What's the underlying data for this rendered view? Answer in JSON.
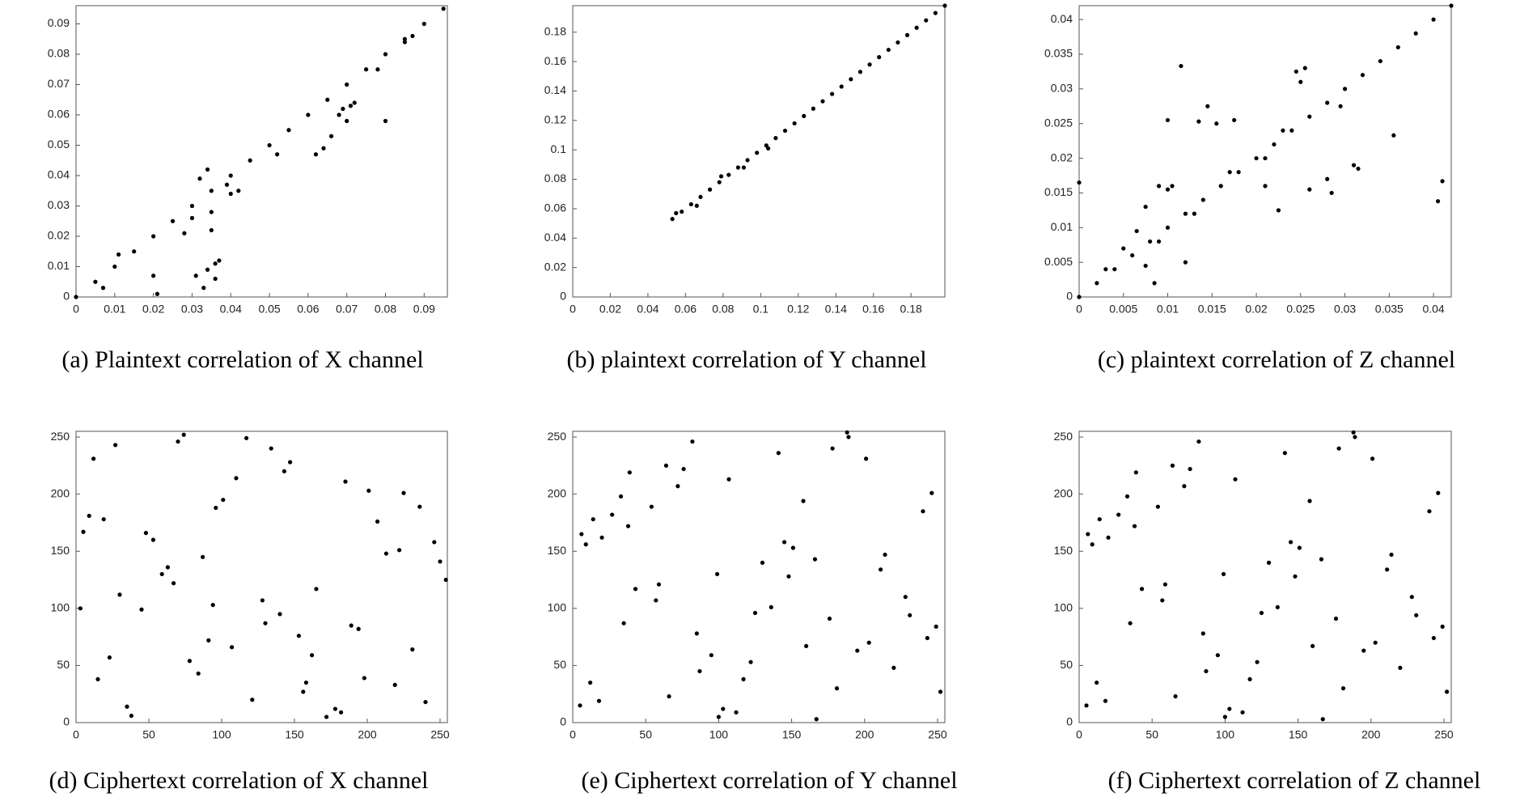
{
  "chart_data": [
    {
      "type": "scatter",
      "title": "(a) Plaintext correlation of X channel",
      "color": "#000000",
      "xlim": [
        0,
        0.096
      ],
      "ylim": [
        0,
        0.096
      ],
      "xticks": [
        0,
        0.01,
        0.02,
        0.03,
        0.04,
        0.05,
        0.06,
        0.07,
        0.08,
        0.09
      ],
      "yticks": [
        0,
        0.01,
        0.02,
        0.03,
        0.04,
        0.05,
        0.06,
        0.07,
        0.08,
        0.09
      ],
      "x": [
        0,
        0.005,
        0.01,
        0.015,
        0.02,
        0.025,
        0.03,
        0.035,
        0.04,
        0.045,
        0.05,
        0.055,
        0.06,
        0.065,
        0.07,
        0.075,
        0.08,
        0.085,
        0.09,
        0.095,
        0.007,
        0.011,
        0.02,
        0.021,
        0.028,
        0.03,
        0.031,
        0.032,
        0.033,
        0.034,
        0.034,
        0.035,
        0.036,
        0.037,
        0.035,
        0.036,
        0.039,
        0.04,
        0.042,
        0.052,
        0.062,
        0.064,
        0.066,
        0.068,
        0.069,
        0.07,
        0.071,
        0.072,
        0.078,
        0.08,
        0.085,
        0.087
      ],
      "values": [
        0,
        0.005,
        0.01,
        0.015,
        0.02,
        0.025,
        0.03,
        0.035,
        0.04,
        0.045,
        0.05,
        0.055,
        0.06,
        0.065,
        0.07,
        0.075,
        0.08,
        0.085,
        0.09,
        0.095,
        0.003,
        0.014,
        0.007,
        0.001,
        0.021,
        0.026,
        0.007,
        0.039,
        0.003,
        0.042,
        0.009,
        0.022,
        0.011,
        0.012,
        0.028,
        0.006,
        0.037,
        0.034,
        0.035,
        0.047,
        0.047,
        0.049,
        0.053,
        0.06,
        0.062,
        0.058,
        0.063,
        0.064,
        0.075,
        0.058,
        0.084,
        0.086
      ]
    },
    {
      "type": "scatter",
      "title": "(b) plaintext correlation of Y channel",
      "color": "#000000",
      "xlim": [
        0,
        0.198
      ],
      "ylim": [
        0,
        0.198
      ],
      "xticks": [
        0,
        0.02,
        0.04,
        0.06,
        0.08,
        0.1,
        0.12,
        0.14,
        0.16,
        0.18
      ],
      "yticks": [
        0,
        0.02,
        0.04,
        0.06,
        0.08,
        0.1,
        0.12,
        0.14,
        0.16,
        0.18
      ],
      "x": [
        0.053,
        0.058,
        0.063,
        0.068,
        0.073,
        0.078,
        0.083,
        0.088,
        0.093,
        0.098,
        0.103,
        0.108,
        0.113,
        0.118,
        0.123,
        0.128,
        0.133,
        0.138,
        0.143,
        0.148,
        0.153,
        0.158,
        0.163,
        0.168,
        0.173,
        0.178,
        0.183,
        0.188,
        0.193,
        0.198,
        0.055,
        0.066,
        0.079,
        0.091,
        0.104
      ],
      "values": [
        0.053,
        0.058,
        0.063,
        0.068,
        0.073,
        0.078,
        0.083,
        0.088,
        0.093,
        0.098,
        0.103,
        0.108,
        0.113,
        0.118,
        0.123,
        0.128,
        0.133,
        0.138,
        0.143,
        0.148,
        0.153,
        0.158,
        0.163,
        0.168,
        0.173,
        0.178,
        0.183,
        0.188,
        0.193,
        0.198,
        0.057,
        0.062,
        0.082,
        0.088,
        0.101
      ]
    },
    {
      "type": "scatter",
      "title": "(c) plaintext correlation of Z channel",
      "color": "#000000",
      "xlim": [
        0,
        0.042
      ],
      "ylim": [
        0,
        0.042
      ],
      "xticks": [
        0,
        0.005,
        0.01,
        0.015,
        0.02,
        0.025,
        0.03,
        0.035,
        0.04
      ],
      "yticks": [
        0,
        0.005,
        0.01,
        0.015,
        0.02,
        0.025,
        0.03,
        0.035,
        0.04
      ],
      "x": [
        0,
        0.002,
        0.004,
        0.006,
        0.008,
        0.01,
        0.012,
        0.014,
        0.016,
        0.018,
        0.02,
        0.022,
        0.024,
        0.026,
        0.028,
        0.03,
        0.032,
        0.034,
        0.036,
        0.038,
        0.04,
        0.042,
        0.003,
        0.005,
        0.009,
        0.013,
        0.017,
        0.021,
        0.023,
        0.0115,
        0.01,
        0.0135,
        0.0145,
        0.0155,
        0.0175,
        0.0245,
        0.025,
        0.0255,
        0.0295,
        0.0355,
        0.0405,
        0.041,
        0.0,
        0.0085,
        0.0065,
        0.0075,
        0.009,
        0.01,
        0.0105,
        0.012,
        0.0225,
        0.026,
        0.028,
        0.031,
        0.0315,
        0.0285,
        0.021,
        0.0075
      ],
      "values": [
        0,
        0.002,
        0.004,
        0.006,
        0.008,
        0.01,
        0.012,
        0.014,
        0.016,
        0.018,
        0.02,
        0.022,
        0.024,
        0.026,
        0.028,
        0.03,
        0.032,
        0.034,
        0.036,
        0.038,
        0.04,
        0.042,
        0.004,
        0.007,
        0.008,
        0.012,
        0.018,
        0.02,
        0.024,
        0.0333,
        0.0255,
        0.0253,
        0.0275,
        0.025,
        0.0255,
        0.0325,
        0.031,
        0.033,
        0.0275,
        0.0233,
        0.0138,
        0.0167,
        0.0165,
        0.002,
        0.0095,
        0.013,
        0.016,
        0.0155,
        0.016,
        0.005,
        0.0125,
        0.0155,
        0.017,
        0.019,
        0.0185,
        0.015,
        0.016,
        0.0045
      ]
    },
    {
      "type": "scatter",
      "title": "(d) Ciphertext correlation of X channel",
      "color": "#000000",
      "xlim": [
        0,
        255
      ],
      "ylim": [
        0,
        255
      ],
      "xticks": [
        0,
        50,
        100,
        150,
        200,
        250
      ],
      "yticks": [
        0,
        50,
        100,
        150,
        200,
        250
      ],
      "x": [
        12,
        240,
        87,
        153,
        201,
        45,
        178,
        96,
        23,
        134,
        67,
        219,
        5,
        110,
        189,
        250,
        38,
        162,
        74,
        128,
        207,
        15,
        143,
        59,
        231,
        101,
        182,
        30,
        246,
        84,
        117,
        194,
        9,
        156,
        63,
        225,
        140,
        48,
        172,
        91,
        213,
        27,
        121,
        165,
        236,
        78,
        147,
        3,
        198,
        53,
        185,
        107,
        254,
        35,
        130,
        70,
        222,
        158,
        19,
        94
      ],
      "values": [
        231,
        18,
        145,
        76,
        203,
        99,
        12,
        188,
        57,
        240,
        122,
        33,
        167,
        214,
        85,
        141,
        6,
        59,
        252,
        107,
        176,
        38,
        220,
        130,
        64,
        195,
        9,
        112,
        158,
        43,
        249,
        82,
        181,
        27,
        136,
        201,
        95,
        166,
        5,
        72,
        148,
        243,
        20,
        117,
        189,
        54,
        228,
        100,
        39,
        160,
        211,
        66,
        125,
        14,
        87,
        246,
        151,
        35,
        178,
        103
      ]
    },
    {
      "type": "scatter",
      "title": "(e) Ciphertext correlation of Y channel",
      "color": "#000000",
      "xlim": [
        0,
        255
      ],
      "ylim": [
        0,
        255
      ],
      "xticks": [
        0,
        50,
        100,
        150,
        200,
        250
      ],
      "yticks": [
        0,
        50,
        100,
        150,
        200,
        250
      ],
      "x": [
        231,
        18,
        145,
        76,
        203,
        99,
        12,
        188,
        57,
        240,
        122,
        33,
        167,
        214,
        85,
        141,
        6,
        59,
        252,
        107,
        176,
        38,
        220,
        130,
        64,
        195,
        9,
        112,
        158,
        43,
        249,
        82,
        181,
        27,
        136,
        201,
        95,
        166,
        5,
        72,
        148,
        243,
        20,
        117,
        189,
        54,
        228,
        100,
        39,
        160,
        211,
        66,
        125,
        14,
        87,
        246,
        151,
        35,
        178,
        103
      ],
      "values": [
        94,
        19,
        158,
        222,
        70,
        130,
        35,
        254,
        107,
        185,
        53,
        198,
        3,
        147,
        78,
        236,
        165,
        121,
        27,
        213,
        91,
        172,
        48,
        140,
        225,
        63,
        156,
        9,
        194,
        117,
        84,
        246,
        30,
        182,
        101,
        231,
        59,
        143,
        15,
        207,
        128,
        74,
        162,
        38,
        250,
        189,
        110,
        5,
        219,
        67,
        134,
        23,
        96,
        178,
        45,
        201,
        153,
        87,
        240,
        12
      ]
    },
    {
      "type": "scatter",
      "title": "(f) Ciphertext correlation of Z channel",
      "color": "#000000",
      "xlim": [
        0,
        255
      ],
      "ylim": [
        0,
        255
      ],
      "xticks": [
        0,
        50,
        100,
        150,
        200,
        250
      ],
      "yticks": [
        0,
        50,
        100,
        150,
        200,
        250
      ],
      "x": [
        103,
        178,
        35,
        151,
        246,
        87,
        14,
        125,
        66,
        211,
        160,
        39,
        100,
        228,
        54,
        189,
        117,
        20,
        243,
        148,
        72,
        5,
        166,
        95,
        201,
        136,
        27,
        181,
        82,
        249,
        43,
        158,
        112,
        9,
        195,
        64,
        130,
        220,
        38,
        176,
        107,
        252,
        59,
        6,
        141,
        85,
        214,
        167,
        33,
        122,
        240,
        57,
        188,
        12,
        99,
        203,
        76,
        145,
        18,
        231
      ],
      "values": [
        12,
        240,
        87,
        153,
        201,
        45,
        178,
        96,
        23,
        134,
        67,
        219,
        5,
        110,
        189,
        250,
        38,
        162,
        74,
        128,
        207,
        15,
        143,
        59,
        231,
        101,
        182,
        30,
        246,
        84,
        117,
        194,
        9,
        156,
        63,
        225,
        140,
        48,
        172,
        91,
        213,
        27,
        121,
        165,
        236,
        78,
        147,
        3,
        198,
        53,
        185,
        107,
        254,
        35,
        130,
        70,
        222,
        158,
        19,
        94
      ]
    }
  ]
}
